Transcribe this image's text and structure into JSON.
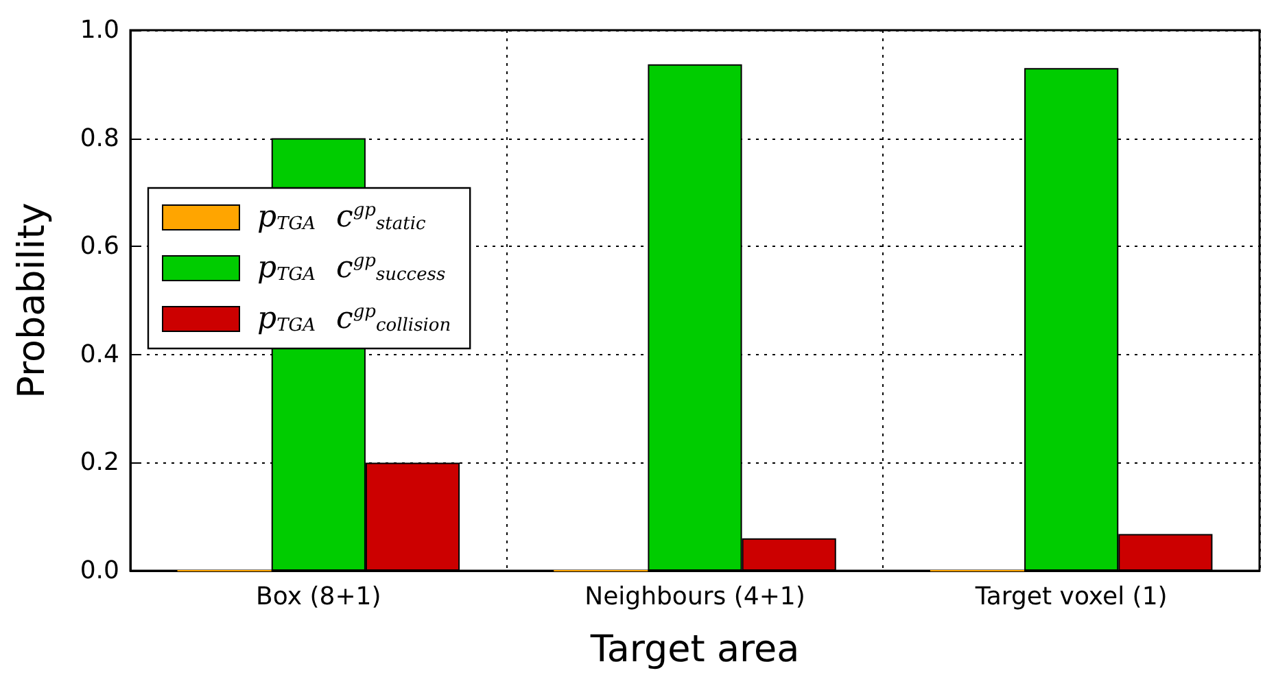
{
  "chart_data": {
    "type": "bar",
    "xlabel": "Target area",
    "ylabel": "Probability",
    "categories": [
      "Box (8+1)",
      "Neighbours (4+1)",
      "Target voxel (1)"
    ],
    "series": [
      {
        "name": "p$_{T}$$_{GA}$ c$^{gp}$$_{static}$",
        "color": "#ffa500",
        "values": [
          0,
          0,
          0
        ]
      },
      {
        "name": "p$_{T}$$_{GA}$ c$^{gp}$$_{success}$",
        "color": "#00cc00",
        "values": [
          0.8,
          0.937,
          0.93
        ]
      },
      {
        "name": "p$_{T}$$_{GA}$ c$^{gp}$$_{collision}$",
        "color": "#cc0000",
        "values": [
          0.2,
          0.06,
          0.068
        ]
      }
    ],
    "ylim": [
      0,
      1
    ],
    "yticks": [
      {
        "value": 0,
        "label": "0.0"
      },
      0.2,
      0.4,
      0.6,
      0.8,
      {
        "value": 1,
        "label": "1.0"
      }
    ],
    "grid": true,
    "legend": "center left"
  }
}
